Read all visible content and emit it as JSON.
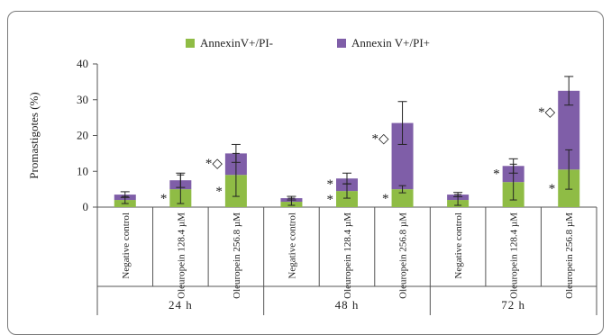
{
  "chart_data": {
    "type": "bar",
    "stacked": true,
    "ylabel": "Promastigotes (%)",
    "ylim": [
      0,
      40
    ],
    "yticks": [
      0,
      10,
      20,
      30,
      40
    ],
    "grid": false,
    "legend_position": "top",
    "categories": [
      "Negative control",
      "Oleuropein 128.4 µM",
      "Oleuropein 256.8 µM",
      "Negative control",
      "Oleuropein 128.4 µM",
      "Oleuropein 256.8 µM",
      "Negative control",
      "Oleuropein 128.4 µM",
      "Oleuropein 256.8 µM"
    ],
    "groups": [
      {
        "label": "24 h",
        "span": [
          0,
          2
        ]
      },
      {
        "label": "48 h",
        "span": [
          3,
          5
        ]
      },
      {
        "label": "72 h",
        "span": [
          6,
          8
        ]
      }
    ],
    "series": [
      {
        "name": "AnnexinV+/PI-",
        "color": "#8fbc45",
        "values": [
          2.0,
          5.0,
          9.0,
          1.5,
          4.5,
          5.0,
          2.0,
          7.0,
          10.5
        ],
        "errors": [
          1.0,
          4.0,
          6.0,
          1.0,
          2.0,
          1.0,
          1.5,
          5.0,
          5.5
        ]
      },
      {
        "name": "Annexin V+/PI+",
        "color": "#7f5ea8",
        "values": [
          1.5,
          2.5,
          6.0,
          1.0,
          3.5,
          18.5,
          1.5,
          4.5,
          22.0
        ],
        "errors": [
          0.8,
          2.0,
          2.5,
          0.5,
          1.5,
          6.0,
          0.6,
          2.0,
          4.0
        ]
      }
    ],
    "annotations": [
      {
        "index": 1,
        "text": "*",
        "level": "bottom"
      },
      {
        "index": 2,
        "text": "*",
        "level": "bottom"
      },
      {
        "index": 2,
        "text": "*◇",
        "level": "top"
      },
      {
        "index": 4,
        "text": "*",
        "level": "bottom"
      },
      {
        "index": 4,
        "text": "*",
        "level": "top"
      },
      {
        "index": 5,
        "text": "*",
        "level": "bottom"
      },
      {
        "index": 5,
        "text": "*◇",
        "level": "top"
      },
      {
        "index": 7,
        "text": "*",
        "level": "top"
      },
      {
        "index": 8,
        "text": "*",
        "level": "bottom"
      },
      {
        "index": 8,
        "text": "*◇",
        "level": "top"
      }
    ]
  }
}
